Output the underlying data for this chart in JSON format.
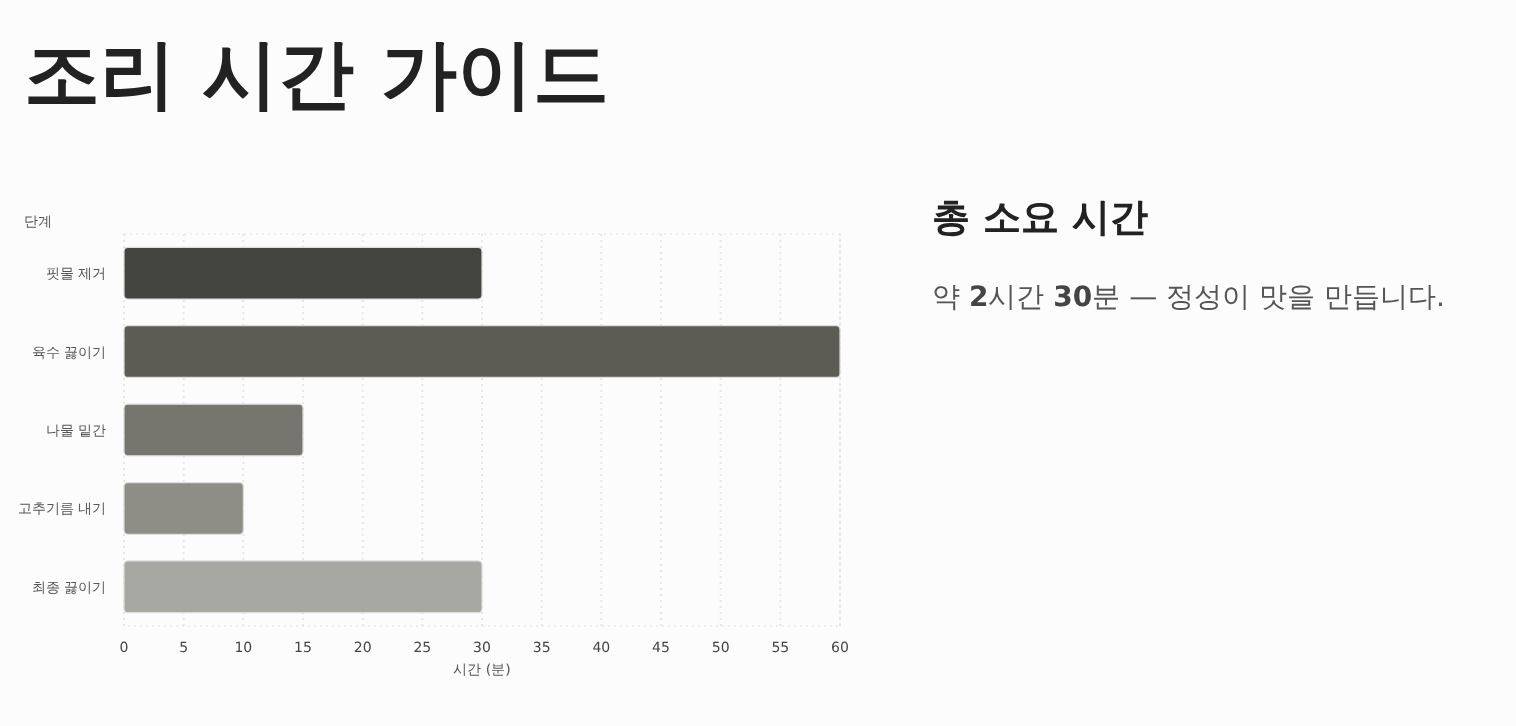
{
  "chart_data": [
    {
      "type": "bar",
      "title": "조리 시간 가이드",
      "orientation": "horizontal",
      "ylabel": "단계",
      "xlabel": "시간 (분)",
      "categories": [
        "핏물 제거",
        "육수 끓이기",
        "나물 밑간",
        "고추기름 내기",
        "최종 끓이기"
      ],
      "values": [
        30,
        60,
        15,
        10,
        30
      ],
      "colors": [
        "#45453f",
        "#5c5c55",
        "#76766e",
        "#8e8d86",
        "#a8a8a2"
      ],
      "xlim": [
        0,
        60
      ],
      "xticks": [
        0,
        5,
        10,
        15,
        20,
        25,
        30,
        35,
        40,
        45,
        50,
        55,
        60
      ],
      "grid": "x"
    },
    {
      "type": "other",
      "title": "총 소요 시간",
      "annotations": [
        "약 2시간 30분 — 정성이 맛을 만듭니다."
      ]
    }
  ]
}
